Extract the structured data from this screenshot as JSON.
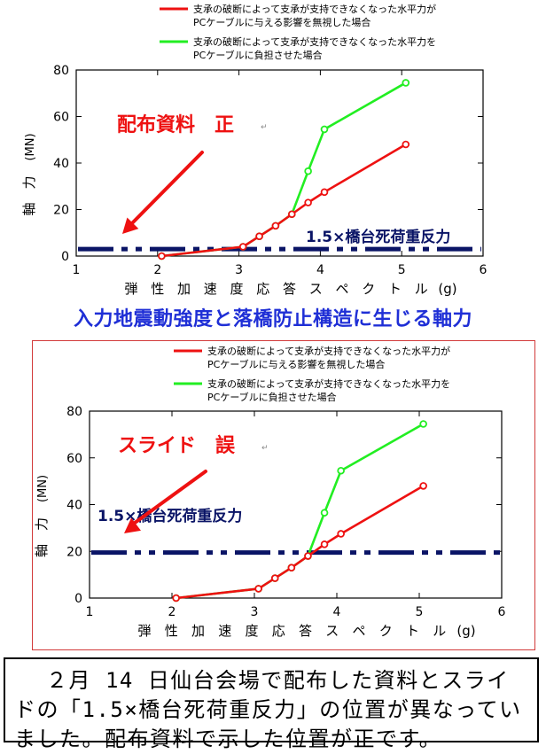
{
  "chart_data": [
    {
      "type": "line",
      "annotation": "配布資料　正",
      "reference_label": "1.5×橋台死荷重反力",
      "reference_value": 3,
      "xlabel": "弾性加速度応答スペクトル(g)",
      "ylabel": "軸　力(MN)",
      "xlim": [
        1,
        6
      ],
      "ylim": [
        0,
        80
      ],
      "xticks": [
        1,
        2,
        3,
        4,
        5,
        6
      ],
      "yticks": [
        0,
        20,
        40,
        60,
        80
      ],
      "legend_position": "top",
      "series": [
        {
          "name": "支承の破断によって支承が支持できなくなった水平力がPCケーブルに与える影響を無視した場合",
          "color": "#ee1111",
          "x": [
            2.05,
            3.05,
            3.25,
            3.45,
            3.65,
            3.85,
            4.05,
            5.05
          ],
          "y": [
            0,
            4,
            8.5,
            13,
            18,
            23,
            27.5,
            48
          ]
        },
        {
          "name": "支承の破断によって支承が支持できなくなった水平力をPCケーブルに負担させた場合",
          "color": "#22ee22",
          "x": [
            2.05,
            3.05,
            3.25,
            3.45,
            3.65,
            3.85,
            4.05,
            5.05
          ],
          "y": [
            0,
            4,
            8.5,
            13,
            18,
            36.5,
            54.5,
            74.5
          ]
        }
      ]
    },
    {
      "type": "line",
      "annotation": "スライド　誤",
      "reference_label": "1.5×橋台死荷重反力",
      "reference_value": 19.5,
      "xlabel": "弾性加速度応答スペクトル(g)",
      "ylabel": "軸　力(MN)",
      "xlim": [
        1,
        6
      ],
      "ylim": [
        0,
        80
      ],
      "xticks": [
        1,
        2,
        3,
        4,
        5,
        6
      ],
      "yticks": [
        0,
        20,
        40,
        60,
        80
      ],
      "legend_position": "top",
      "series": [
        {
          "name": "支承の破断によって支承が支持できなくなった水平力がPCケーブルに与える影響を無視した場合",
          "color": "#ee1111",
          "x": [
            2.05,
            3.05,
            3.25,
            3.45,
            3.65,
            3.85,
            4.05,
            5.05
          ],
          "y": [
            0,
            4,
            8.5,
            13,
            18,
            23,
            27.5,
            48
          ]
        },
        {
          "name": "支承の破断によって支承が支持できなくなった水平力をPCケーブルに負担させた場合",
          "color": "#22ee22",
          "x": [
            2.05,
            3.05,
            3.25,
            3.45,
            3.65,
            3.85,
            4.05,
            5.05
          ],
          "y": [
            0,
            4,
            8.5,
            13,
            18,
            36.5,
            54.5,
            74.5
          ]
        }
      ]
    }
  ],
  "legend_lines": [
    [
      "支承の破断によって支承が支持できなくなった水平力が",
      "PCケーブルに与える影響を無視した場合"
    ],
    [
      "支承の破断によって支承が支持できなくなった水平力を",
      "PCケーブルに負担させた場合"
    ]
  ],
  "axis_titles": {
    "x": [
      "弾",
      "性",
      "加",
      "速",
      "度",
      "応",
      "答",
      "ス",
      "ペ",
      "ク",
      "ト",
      "ル",
      "(g)"
    ],
    "y": [
      "軸",
      "力",
      "(MN)"
    ]
  },
  "caption": "入力地震動強度と落橋防止構造に生じる軸力",
  "note": "２月 14 日仙台会場で配布した資料とスライドの「1.5×橋台死荷重反力」の位置が異なっていました。配布資料で示した位置が正です。",
  "colors": {
    "red_series": "#ee1111",
    "green_series": "#22ee22",
    "reference_line": "#0a1466",
    "caption_blue": "#1f2fd6",
    "annotation_red": "#ee1111"
  }
}
